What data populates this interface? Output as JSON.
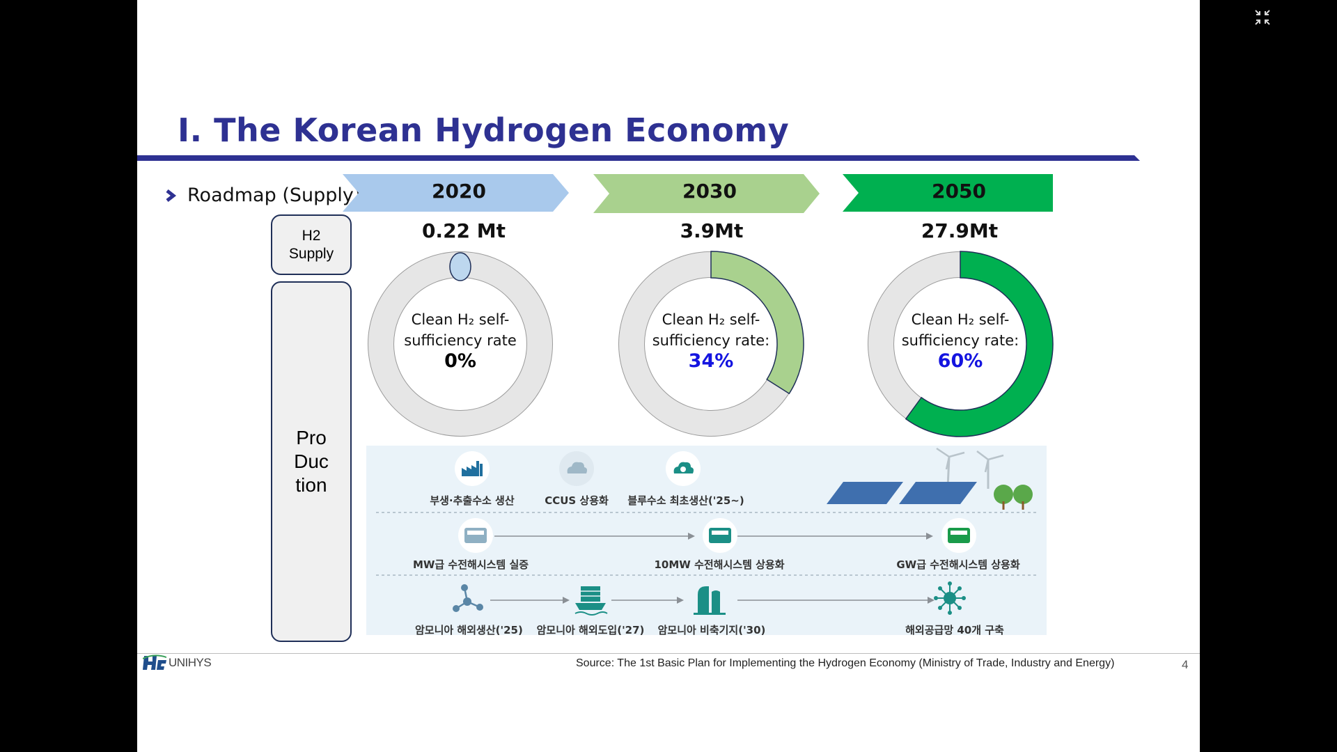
{
  "slide": {
    "title": "Ⅰ. The Korean Hydrogen Economy",
    "section": "Roadmap (Supply)",
    "row_labels": {
      "supply": [
        "H2",
        "Supply"
      ],
      "production": [
        "Pro",
        "Duc",
        "tion"
      ]
    },
    "timeline": [
      {
        "year": "2020",
        "supply": "0.22 Mt",
        "label_lines": [
          "Clean H₂ self-",
          "sufficiency rate"
        ],
        "rate_text": "0%",
        "rate": 0,
        "color": "#a9c9ec"
      },
      {
        "year": "2030",
        "supply": "3.9Mt",
        "label_lines": [
          "Clean H₂ self-",
          "sufficiency rate:"
        ],
        "rate_text": "34%",
        "rate": 0.34,
        "color": "#a9d18e"
      },
      {
        "year": "2050",
        "supply": "27.9Mt",
        "label_lines": [
          "Clean H₂ self-",
          "sufficiency rate:"
        ],
        "rate_text": "60%",
        "rate": 0.6,
        "color": "#00b050"
      }
    ],
    "production": {
      "row1": [
        "부생·추출수소 생산",
        "CCUS 상용화",
        "블루수소 최초생산('25~)"
      ],
      "row2": [
        "MW급 수전해시스템 실증",
        "10MW 수전해시스템 상용화",
        "GW급 수전해시스템 상용화"
      ],
      "row3": [
        "암모니아 해외생산('25)",
        "암모니아 해외도입('27)",
        "암모니아 비축기지('30)",
        "해외공급망 40개 구축"
      ]
    },
    "footer": {
      "logo_text": "UNIHYS",
      "source": "Source: The 1st Basic Plan for Implementing the Hydrogen Economy (Ministry of Trade, Industry and Energy)",
      "page": "4"
    }
  },
  "colors": {
    "title": "#2e3192",
    "percent": "#1414e0",
    "frame": "#1f2f58"
  }
}
